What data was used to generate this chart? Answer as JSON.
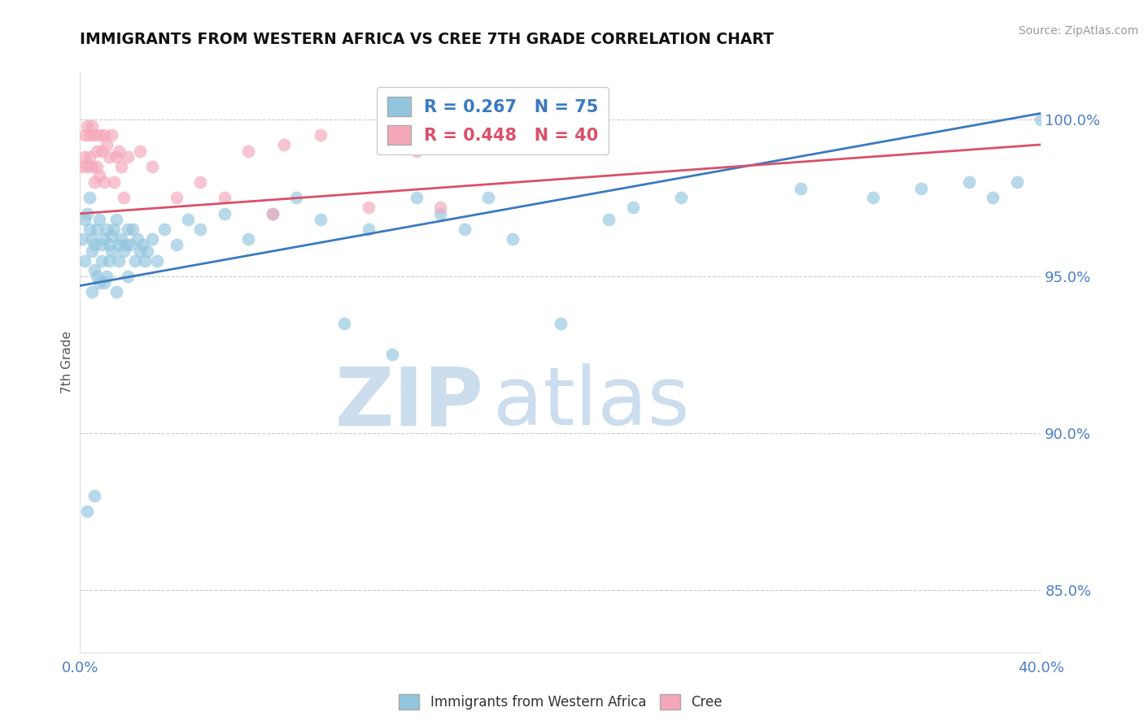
{
  "title": "IMMIGRANTS FROM WESTERN AFRICA VS CREE 7TH GRADE CORRELATION CHART",
  "source_text": "Source: ZipAtlas.com",
  "ylabel": "7th Grade",
  "xlim": [
    0.0,
    40.0
  ],
  "ylim": [
    83.0,
    101.5
  ],
  "yticks": [
    85.0,
    90.0,
    95.0,
    100.0
  ],
  "ytick_labels": [
    "85.0%",
    "90.0%",
    "95.0%",
    "100.0%"
  ],
  "xtick_show": [
    0.0,
    40.0
  ],
  "xtick_labels_show": [
    "0.0%",
    "40.0%"
  ],
  "blue_R": 0.267,
  "blue_N": 75,
  "pink_R": 0.448,
  "pink_N": 40,
  "blue_color": "#92c5de",
  "pink_color": "#f4a7b9",
  "blue_line_color": "#3a7abf",
  "pink_line_color": "#d9506a",
  "legend_blue_label": "Immigrants from Western Africa",
  "legend_pink_label": "Cree",
  "watermark_zip": "ZIP",
  "watermark_atlas": "atlas",
  "watermark_color": "#ccdded",
  "blue_scatter_x": [
    0.1,
    0.2,
    0.2,
    0.3,
    0.4,
    0.4,
    0.5,
    0.5,
    0.5,
    0.6,
    0.6,
    0.7,
    0.7,
    0.8,
    0.8,
    0.9,
    0.9,
    1.0,
    1.0,
    1.1,
    1.1,
    1.2,
    1.2,
    1.3,
    1.3,
    1.4,
    1.5,
    1.5,
    1.6,
    1.6,
    1.7,
    1.8,
    1.9,
    2.0,
    2.0,
    2.1,
    2.2,
    2.3,
    2.4,
    2.5,
    2.6,
    2.7,
    2.8,
    3.0,
    3.2,
    3.5,
    4.0,
    4.5,
    5.0,
    6.0,
    7.0,
    8.0,
    9.0,
    10.0,
    11.0,
    12.0,
    13.0,
    14.0,
    15.0,
    16.0,
    17.0,
    18.0,
    20.0,
    22.0,
    23.0,
    25.0,
    30.0,
    33.0,
    35.0,
    37.0,
    38.0,
    39.0,
    40.0,
    0.3,
    0.6
  ],
  "blue_scatter_y": [
    96.2,
    96.8,
    95.5,
    97.0,
    96.5,
    97.5,
    95.8,
    96.2,
    94.5,
    96.0,
    95.2,
    96.5,
    95.0,
    96.8,
    94.8,
    96.0,
    95.5,
    96.2,
    94.8,
    96.5,
    95.0,
    96.0,
    95.5,
    96.3,
    95.8,
    96.5,
    94.5,
    96.8,
    95.5,
    96.0,
    96.2,
    95.8,
    96.0,
    96.5,
    95.0,
    96.0,
    96.5,
    95.5,
    96.2,
    95.8,
    96.0,
    95.5,
    95.8,
    96.2,
    95.5,
    96.5,
    96.0,
    96.8,
    96.5,
    97.0,
    96.2,
    97.0,
    97.5,
    96.8,
    93.5,
    96.5,
    92.5,
    97.5,
    97.0,
    96.5,
    97.5,
    96.2,
    93.5,
    96.8,
    97.2,
    97.5,
    97.8,
    97.5,
    97.8,
    98.0,
    97.5,
    98.0,
    100.0,
    87.5,
    88.0
  ],
  "pink_scatter_x": [
    0.1,
    0.2,
    0.2,
    0.3,
    0.3,
    0.4,
    0.4,
    0.5,
    0.5,
    0.6,
    0.6,
    0.7,
    0.7,
    0.8,
    0.8,
    0.9,
    1.0,
    1.0,
    1.1,
    1.2,
    1.3,
    1.4,
    1.5,
    1.6,
    1.7,
    1.8,
    2.0,
    2.5,
    3.0,
    4.0,
    5.0,
    6.0,
    7.0,
    8.0,
    8.5,
    10.0,
    12.0,
    14.0,
    15.0,
    20.0
  ],
  "pink_scatter_y": [
    98.5,
    99.5,
    98.8,
    99.8,
    98.5,
    99.5,
    98.8,
    99.8,
    98.5,
    99.5,
    98.0,
    99.0,
    98.5,
    99.5,
    98.2,
    99.0,
    99.5,
    98.0,
    99.2,
    98.8,
    99.5,
    98.0,
    98.8,
    99.0,
    98.5,
    97.5,
    98.8,
    99.0,
    98.5,
    97.5,
    98.0,
    97.5,
    99.0,
    97.0,
    99.2,
    99.5,
    97.2,
    99.0,
    97.2,
    99.5
  ],
  "blue_line_x0": 0.0,
  "blue_line_y0": 94.7,
  "blue_line_x1": 40.0,
  "blue_line_y1": 100.2,
  "pink_line_x0": 0.0,
  "pink_line_y0": 97.0,
  "pink_line_x1": 40.0,
  "pink_line_y1": 99.2
}
